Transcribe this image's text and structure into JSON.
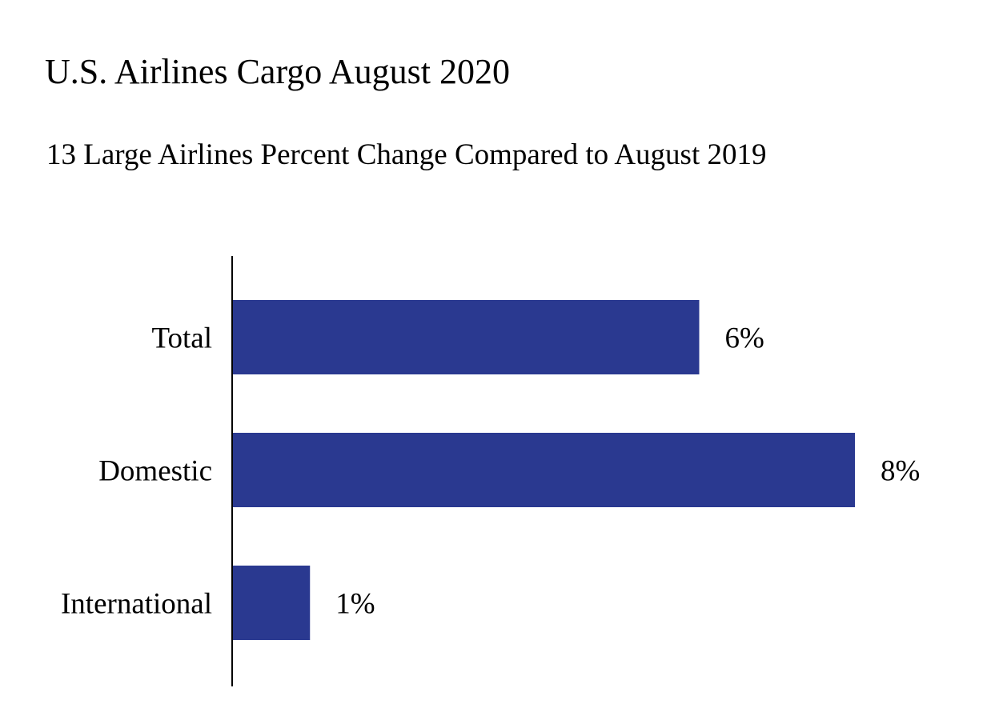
{
  "chart_data": {
    "type": "bar",
    "orientation": "horizontal",
    "title": "U.S. Airlines Cargo August 2020",
    "subtitle": "13 Large Airlines Percent Change Compared to August 2019",
    "categories": [
      "Total",
      "Domestic",
      "International"
    ],
    "values": [
      6,
      8,
      1
    ],
    "value_labels": [
      "6%",
      "8%",
      "1%"
    ],
    "xlabel": "",
    "ylabel": "",
    "xlim": [
      0,
      8
    ],
    "grid": false,
    "legend": "none",
    "bar_color": "#2A3990",
    "axis_color": "#000000"
  }
}
